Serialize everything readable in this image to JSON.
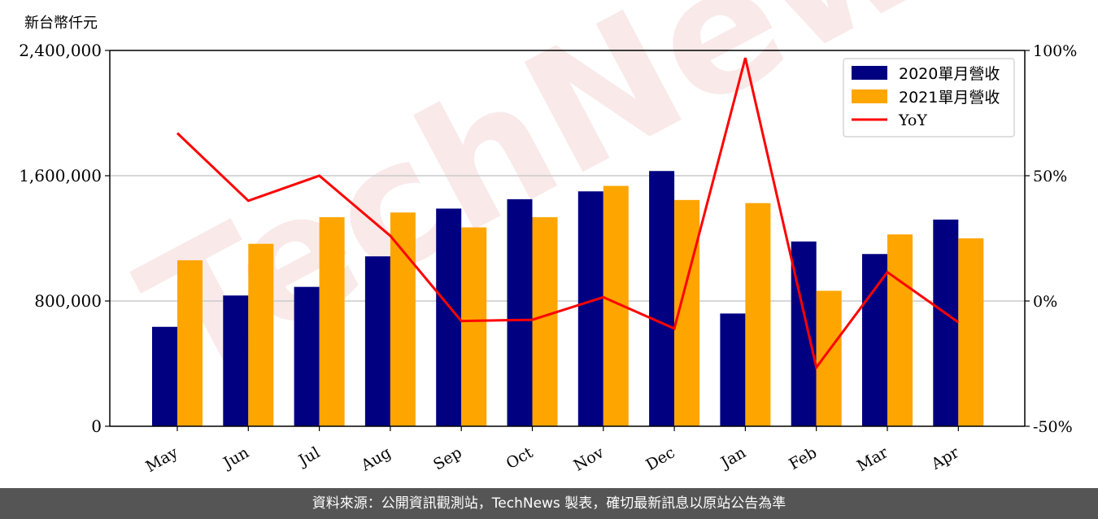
{
  "unit_label": "新台幣仟元",
  "footer_text": "資料來源：公開資訊觀測站，TechNews 製表，確切最新訊息以原站公告為準",
  "watermark_text": "TechNews",
  "chart_data": {
    "type": "bar",
    "categories": [
      "May",
      "Jun",
      "Jul",
      "Aug",
      "Sep",
      "Oct",
      "Nov",
      "Dec",
      "Jan",
      "Feb",
      "Mar",
      "Apr"
    ],
    "series": [
      {
        "name": "2020單月營收",
        "color": "#000080",
        "values": [
          635000,
          835000,
          890000,
          1085000,
          1390000,
          1450000,
          1500000,
          1630000,
          720000,
          1180000,
          1100000,
          1320000
        ]
      },
      {
        "name": "2021單月營收",
        "color": "#FFA500",
        "values": [
          1060000,
          1165000,
          1335000,
          1365000,
          1270000,
          1335000,
          1535000,
          1445000,
          1425000,
          865000,
          1225000,
          1200000
        ]
      }
    ],
    "line_series": {
      "name": "YoY",
      "color": "#FF0000",
      "axis": "right",
      "values": [
        67,
        40,
        50,
        26,
        -8,
        -7.5,
        1.5,
        -11,
        97,
        -26.5,
        11.5,
        -8.5
      ]
    },
    "ylim_left": [
      0,
      2400000
    ],
    "yticks_left": [
      "0",
      "800,000",
      "1,600,000",
      "2,400,000"
    ],
    "ylim_right": [
      -50,
      100
    ],
    "yticks_right": [
      "-50%",
      "0%",
      "50%",
      "100%"
    ],
    "grid": "horizontal",
    "legend_position": "top-right"
  }
}
